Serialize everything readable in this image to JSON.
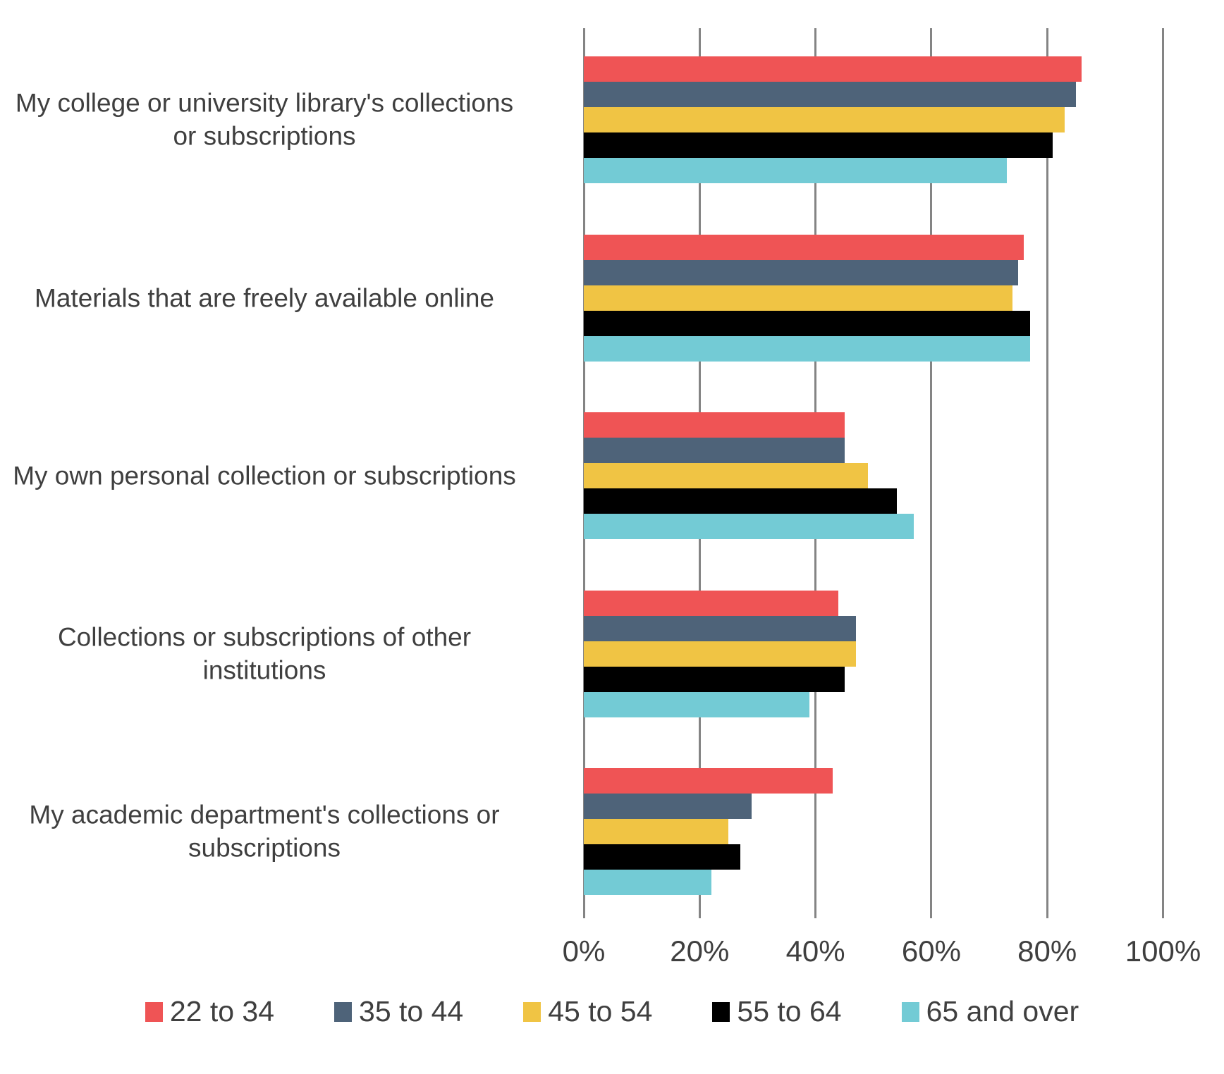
{
  "chart_data": {
    "type": "bar",
    "orientation": "horizontal",
    "title": "",
    "categories": [
      "My college or university library's collections or subscriptions",
      "Materials that are freely available online",
      "My own personal collection or subscriptions",
      "Collections or subscriptions of other institutions",
      "My academic department's collections or subscriptions"
    ],
    "series": [
      {
        "name": "22 to 34",
        "color": "#ef5455",
        "values": [
          86,
          76,
          45,
          44,
          43
        ]
      },
      {
        "name": "35 to 44",
        "color": "#4e6379",
        "values": [
          85,
          75,
          45,
          47,
          29
        ]
      },
      {
        "name": "45 to 54",
        "color": "#f0c444",
        "values": [
          83,
          74,
          49,
          47,
          25
        ]
      },
      {
        "name": "55 to 64",
        "color": "#000000",
        "values": [
          81,
          77,
          54,
          45,
          27
        ]
      },
      {
        "name": "65 and over",
        "color": "#73cbd5",
        "values": [
          73,
          77,
          57,
          39,
          22
        ]
      }
    ],
    "values_unit": "%",
    "x_axis": {
      "min": 0,
      "max": 100,
      "ticks": [
        "0%",
        "20%",
        "40%",
        "60%",
        "80%",
        "100%"
      ]
    },
    "grid": "vertical gridlines at 20% intervals",
    "legend_position": "bottom"
  },
  "style": {
    "background_color": "#ffffff",
    "grid_color": "#848484",
    "text_color": "#3f3f3f"
  }
}
